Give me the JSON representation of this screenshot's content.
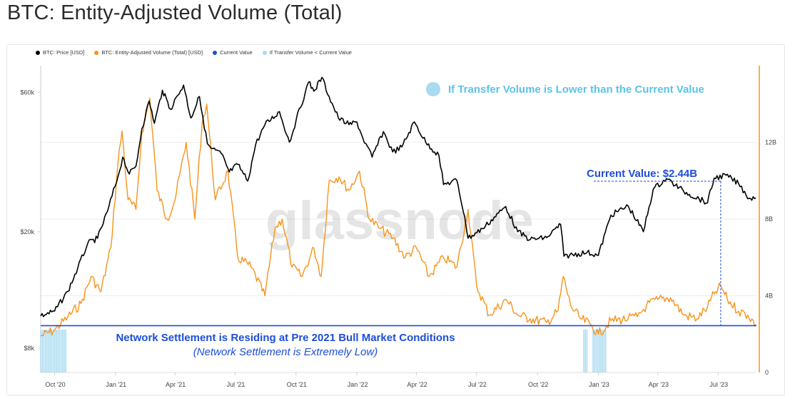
{
  "page": {
    "title": "BTC: Entity-Adjusted Volume (Total)"
  },
  "legend": [
    {
      "label": "BTC: Price [USD]",
      "color": "#000000"
    },
    {
      "label": "BTC: Entity-Adjusted Volume (Total) [USD]",
      "color": "#f7931a"
    },
    {
      "label": "Current Value",
      "color": "#1d4ed8"
    },
    {
      "label": "If Transfer Volume < Current Value",
      "color": "#a8daf0"
    }
  ],
  "watermark": "glassnode",
  "annotations": {
    "highlight_note": "If Transfer Volume is Lower than the Current Value",
    "current_value_label": "Current Value: $2.44B",
    "settlement_line1": "Network Settlement is Residing at Pre 2021 Bull Market Conditions",
    "settlement_line2": "(Network Settlement is Extremely Low)"
  },
  "chart_data": {
    "type": "line",
    "title": "BTC: Entity-Adjusted Volume (Total)",
    "x_ticks": [
      "Oct '20",
      "Jan '21",
      "Apr '21",
      "Jul '21",
      "Oct '21",
      "Jan '22",
      "Apr '22",
      "Jul '22",
      "Oct '22",
      "Jan '23",
      "Apr '23",
      "Jul '23"
    ],
    "y_left": {
      "scale": "log",
      "ticks": [
        "$8k",
        "$20k",
        "$60k"
      ],
      "tick_values": [
        8000,
        20000,
        60000
      ]
    },
    "y_right": {
      "scale": "linear",
      "ticks": [
        "0",
        "4B",
        "8B",
        "12B"
      ],
      "tick_values": [
        0,
        4,
        8,
        12
      ],
      "range": [
        0,
        16
      ]
    },
    "current_value": 2.44,
    "series": [
      {
        "name": "BTC: Price [USD]",
        "color": "#000000",
        "axis": "left",
        "points": [
          [
            "2020-09-10",
            10300
          ],
          [
            "2020-10-01",
            10700
          ],
          [
            "2020-10-21",
            12500
          ],
          [
            "2020-11-05",
            15000
          ],
          [
            "2020-11-20",
            18200
          ],
          [
            "2020-12-05",
            19000
          ],
          [
            "2020-12-20",
            23500
          ],
          [
            "2021-01-05",
            31000
          ],
          [
            "2021-01-12",
            36000
          ],
          [
            "2021-01-22",
            31500
          ],
          [
            "2021-02-01",
            33500
          ],
          [
            "2021-02-10",
            45000
          ],
          [
            "2021-02-21",
            56000
          ],
          [
            "2021-03-01",
            47000
          ],
          [
            "2021-03-13",
            61000
          ],
          [
            "2021-03-25",
            52500
          ],
          [
            "2021-04-05",
            58500
          ],
          [
            "2021-04-14",
            63500
          ],
          [
            "2021-04-25",
            49000
          ],
          [
            "2021-05-08",
            58000
          ],
          [
            "2021-05-13",
            49500
          ],
          [
            "2021-05-20",
            40000
          ],
          [
            "2021-05-26",
            38500
          ],
          [
            "2021-06-10",
            37000
          ],
          [
            "2021-06-22",
            32000
          ],
          [
            "2021-07-05",
            34000
          ],
          [
            "2021-07-20",
            29800
          ],
          [
            "2021-08-01",
            39800
          ],
          [
            "2021-08-15",
            46500
          ],
          [
            "2021-09-06",
            51500
          ],
          [
            "2021-09-21",
            40500
          ],
          [
            "2021-10-01",
            48000
          ],
          [
            "2021-10-15",
            60000
          ],
          [
            "2021-10-20",
            65000
          ],
          [
            "2021-10-28",
            60500
          ],
          [
            "2021-11-09",
            67500
          ],
          [
            "2021-11-20",
            58000
          ],
          [
            "2021-12-04",
            49000
          ],
          [
            "2021-12-20",
            46500
          ],
          [
            "2022-01-01",
            47500
          ],
          [
            "2022-01-10",
            41800
          ],
          [
            "2022-01-24",
            36000
          ],
          [
            "2022-02-10",
            44000
          ],
          [
            "2022-02-24",
            37500
          ],
          [
            "2022-03-10",
            39000
          ],
          [
            "2022-03-29",
            47500
          ],
          [
            "2022-04-15",
            40500
          ],
          [
            "2022-05-05",
            36500
          ],
          [
            "2022-05-12",
            29000
          ],
          [
            "2022-06-01",
            30000
          ],
          [
            "2022-06-13",
            22500
          ],
          [
            "2022-06-18",
            19000
          ],
          [
            "2022-07-10",
            20500
          ],
          [
            "2022-08-14",
            24400
          ],
          [
            "2022-09-01",
            20000
          ],
          [
            "2022-09-20",
            18800
          ],
          [
            "2022-10-15",
            19100
          ],
          [
            "2022-11-05",
            21200
          ],
          [
            "2022-11-10",
            16500
          ],
          [
            "2022-12-15",
            17000
          ],
          [
            "2023-01-01",
            16600
          ],
          [
            "2023-01-20",
            22800
          ],
          [
            "2023-02-15",
            24500
          ],
          [
            "2023-03-10",
            20000
          ],
          [
            "2023-03-25",
            28000
          ],
          [
            "2023-04-14",
            30400
          ],
          [
            "2023-05-10",
            27500
          ],
          [
            "2023-06-15",
            25100
          ],
          [
            "2023-06-25",
            30500
          ],
          [
            "2023-07-13",
            31200
          ],
          [
            "2023-08-01",
            29200
          ],
          [
            "2023-08-17",
            26000
          ],
          [
            "2023-08-27",
            26100
          ]
        ]
      },
      {
        "name": "BTC: Entity-Adjusted Volume (Total) [USD]",
        "color": "#f7931a",
        "axis": "right",
        "unit": "B USD",
        "points": [
          [
            "2020-09-10",
            1.9
          ],
          [
            "2020-10-01",
            2.2
          ],
          [
            "2020-10-21",
            2.9
          ],
          [
            "2020-11-10",
            3.6
          ],
          [
            "2020-11-25",
            5.0
          ],
          [
            "2020-12-10",
            4.2
          ],
          [
            "2020-12-25",
            6.5
          ],
          [
            "2021-01-05",
            11.0
          ],
          [
            "2021-01-11",
            12.6
          ],
          [
            "2021-01-20",
            9.0
          ],
          [
            "2021-02-01",
            8.5
          ],
          [
            "2021-02-10",
            12.5
          ],
          [
            "2021-02-22",
            14.3
          ],
          [
            "2021-03-05",
            9.5
          ],
          [
            "2021-03-20",
            8.0
          ],
          [
            "2021-04-01",
            9.0
          ],
          [
            "2021-04-18",
            12.0
          ],
          [
            "2021-05-01",
            8.0
          ],
          [
            "2021-05-12",
            13.0
          ],
          [
            "2021-05-19",
            14.0
          ],
          [
            "2021-06-01",
            9.0
          ],
          [
            "2021-06-20",
            10.5
          ],
          [
            "2021-07-05",
            6.0
          ],
          [
            "2021-07-25",
            5.5
          ],
          [
            "2021-08-15",
            4.0
          ],
          [
            "2021-08-30",
            7.5
          ],
          [
            "2021-09-10",
            8.0
          ],
          [
            "2021-09-25",
            5.5
          ],
          [
            "2021-10-10",
            5.0
          ],
          [
            "2021-10-28",
            6.5
          ],
          [
            "2021-11-08",
            5.0
          ],
          [
            "2021-11-20",
            10.0
          ],
          [
            "2021-12-05",
            10.2
          ],
          [
            "2021-12-20",
            9.5
          ],
          [
            "2022-01-05",
            10.5
          ],
          [
            "2022-01-20",
            8.0
          ],
          [
            "2022-02-05",
            7.5
          ],
          [
            "2022-02-25",
            7.0
          ],
          [
            "2022-03-15",
            6.0
          ],
          [
            "2022-04-01",
            6.5
          ],
          [
            "2022-04-20",
            5.0
          ],
          [
            "2022-05-12",
            6.0
          ],
          [
            "2022-06-01",
            5.5
          ],
          [
            "2022-06-18",
            8.5
          ],
          [
            "2022-07-01",
            4.5
          ],
          [
            "2022-07-20",
            3.0
          ],
          [
            "2022-08-15",
            3.8
          ],
          [
            "2022-09-01",
            3.0
          ],
          [
            "2022-09-20",
            2.8
          ],
          [
            "2022-10-15",
            2.6
          ],
          [
            "2022-11-01",
            3.2
          ],
          [
            "2022-11-09",
            5.0
          ],
          [
            "2022-11-20",
            3.5
          ],
          [
            "2022-12-05",
            2.8
          ],
          [
            "2022-12-20",
            2.5
          ],
          [
            "2023-01-01",
            2.0
          ],
          [
            "2023-01-20",
            2.7
          ],
          [
            "2023-02-15",
            2.8
          ],
          [
            "2023-03-01",
            2.9
          ],
          [
            "2023-03-15",
            3.5
          ],
          [
            "2023-04-01",
            3.8
          ],
          [
            "2023-04-20",
            3.9
          ],
          [
            "2023-05-10",
            3.0
          ],
          [
            "2023-05-30",
            2.8
          ],
          [
            "2023-06-15",
            3.4
          ],
          [
            "2023-06-25",
            4.1
          ],
          [
            "2023-07-05",
            4.5
          ],
          [
            "2023-07-15",
            3.8
          ],
          [
            "2023-08-01",
            3.2
          ],
          [
            "2023-08-15",
            3.0
          ],
          [
            "2023-08-27",
            2.5
          ]
        ]
      }
    ],
    "low_volume_periods": [
      [
        "2020-09-10",
        "2020-10-20"
      ],
      [
        "2022-12-10",
        "2022-12-16"
      ],
      [
        "2022-12-24",
        "2023-01-12"
      ]
    ]
  }
}
